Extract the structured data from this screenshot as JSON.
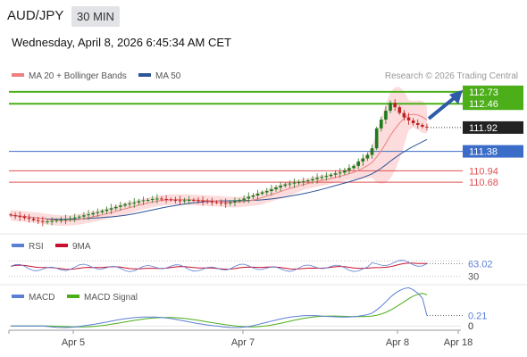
{
  "header": {
    "symbol": "AUD/JPY",
    "timeframe": "30 MIN",
    "datetime": "Wednesday, April 8, 2026 6:45:34 AM CET"
  },
  "main_legend": {
    "ma20_label": "MA 20 + Bollinger Bands",
    "ma50_label": "MA 50",
    "credit": "Research © 2026 Trading Central"
  },
  "rsi_legend": {
    "rsi_label": "RSI",
    "ma_label": "9MA"
  },
  "macd_legend": {
    "macd_label": "MACD",
    "signal_label": "MACD Signal"
  },
  "colors": {
    "ma20": "#f08080",
    "ma50": "#2f5597",
    "bands_fill": "#fbd6d6",
    "candle_up": "#1e7b1e",
    "candle_down": "#c02020",
    "green_level": "#4caf1a",
    "blue_level": "#3a6cc8",
    "red_level": "#e05050",
    "rsi": "#5b7fd4",
    "rsi_ma": "#c8102e",
    "macd": "#5b7fd4",
    "signal": "#4caf1a"
  },
  "chart_data": {
    "type": "candlestick",
    "instrument": "AUD/JPY",
    "interval": "30 MIN",
    "x_ticks": [
      "Apr 5",
      "Apr 7",
      "Apr 8",
      "Apr 18"
    ],
    "ylim": [
      109.55,
      112.95
    ],
    "levels": [
      {
        "value": 112.73,
        "label": "112.73",
        "kind": "resistance"
      },
      {
        "value": 112.46,
        "label": "112.46",
        "kind": "resistance"
      },
      {
        "value": 111.92,
        "label": "111.92",
        "kind": "last"
      },
      {
        "value": 111.38,
        "label": "111.38",
        "kind": "pivot"
      },
      {
        "value": 110.94,
        "label": "110.94",
        "kind": "support"
      },
      {
        "value": 110.68,
        "label": "110.68",
        "kind": "support"
      }
    ],
    "close_series": [
      109.93,
      109.91,
      109.9,
      109.87,
      109.85,
      109.82,
      109.8,
      109.78,
      109.79,
      109.8,
      109.82,
      109.83,
      109.84,
      109.86,
      109.88,
      109.9,
      109.93,
      109.95,
      109.98,
      110.0,
      110.03,
      110.06,
      110.09,
      110.12,
      110.15,
      110.18,
      110.2,
      110.22,
      110.25,
      110.27,
      110.28,
      110.3,
      110.31,
      110.3,
      110.29,
      110.28,
      110.27,
      110.26,
      110.27,
      110.28,
      110.27,
      110.26,
      110.25,
      110.24,
      110.23,
      110.22,
      110.21,
      110.2,
      110.22,
      110.25,
      110.28,
      110.31,
      110.35,
      110.38,
      110.42,
      110.45,
      110.48,
      110.52,
      110.56,
      110.6,
      110.63,
      110.65,
      110.67,
      110.68,
      110.7,
      110.72,
      110.75,
      110.78,
      110.8,
      110.82,
      110.85,
      110.88,
      110.9,
      110.95,
      111.0,
      111.05,
      111.15,
      111.22,
      111.3,
      111.45,
      111.9,
      112.1,
      112.3,
      112.48,
      112.38,
      112.25,
      112.15,
      112.08,
      112.02,
      111.98,
      111.94,
      111.92
    ],
    "forecast": {
      "from": 111.92,
      "to": 112.73
    },
    "rsi": {
      "last": 63.02,
      "marks": [
        "63.02",
        "30"
      ]
    },
    "macd": {
      "last": 0.21,
      "marks": [
        "0.21",
        "0"
      ]
    }
  }
}
